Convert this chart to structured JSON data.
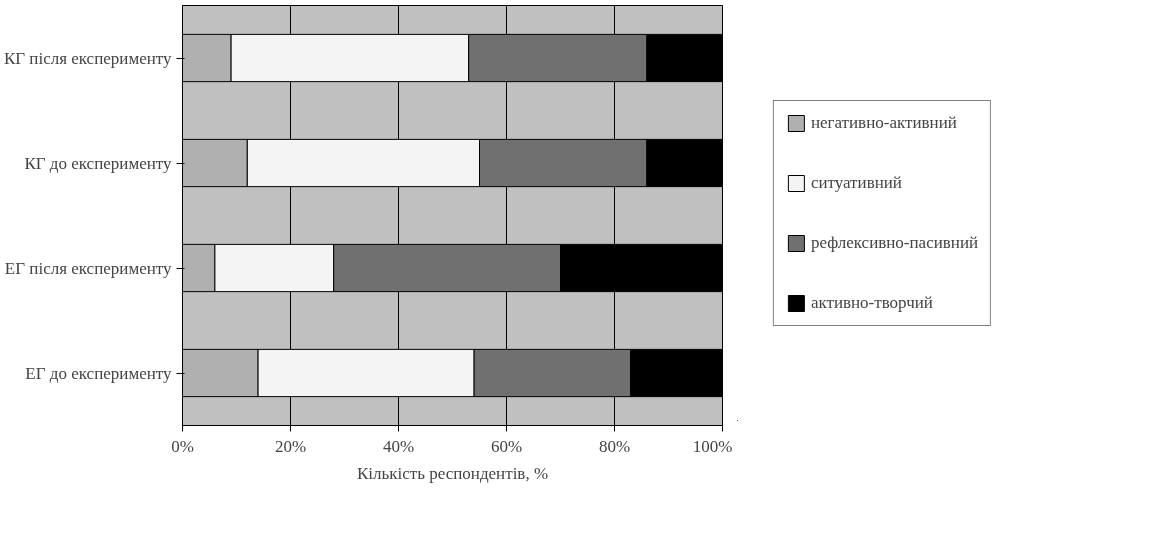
{
  "chart_data": {
    "type": "bar",
    "orientation": "horizontal",
    "stacked": true,
    "xlabel": "Кількість респондентів, %",
    "categories": [
      "КГ після експерименту",
      "КГ до експерименту",
      "ЕГ після експерименту",
      "ЕГ до експерименту"
    ],
    "series": [
      {
        "name": "негативно-активний",
        "color": "#b0b0b0",
        "values": [
          9,
          12,
          6,
          14
        ]
      },
      {
        "name": "ситуативний",
        "color": "#f4f4f4",
        "values": [
          44,
          43,
          22,
          40
        ]
      },
      {
        "name": "рефлексивно-пасивний",
        "color": "#707070",
        "values": [
          33,
          31,
          42,
          29
        ]
      },
      {
        "name": "активно-творчий",
        "color": "#000000",
        "values": [
          14,
          14,
          30,
          17
        ]
      }
    ],
    "xlim": [
      0,
      100
    ],
    "xticks": [
      {
        "value": 0,
        "label": "0%"
      },
      {
        "value": 20,
        "label": "20%"
      },
      {
        "value": 40,
        "label": "40%"
      },
      {
        "value": 60,
        "label": "60%"
      },
      {
        "value": 80,
        "label": "80%"
      },
      {
        "value": 100,
        "label": "100%"
      }
    ],
    "grid": "x",
    "legend": "right"
  }
}
